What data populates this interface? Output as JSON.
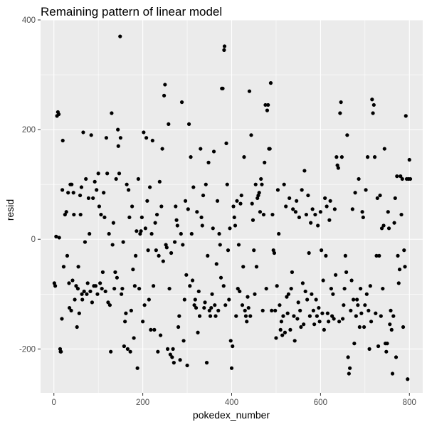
{
  "chart_data": {
    "type": "scatter",
    "title": "Remaining pattern of linear model",
    "xlabel": "pokedex_number",
    "ylabel": "resid",
    "xlim": [
      -30,
      830
    ],
    "ylim": [
      -280,
      400
    ],
    "x_ticks": [
      0,
      200,
      400,
      600,
      800
    ],
    "y_ticks": [
      -200,
      0,
      200,
      400
    ],
    "grid": true,
    "points": [
      [
        1,
        -80
      ],
      [
        3,
        -85
      ],
      [
        5,
        5
      ],
      [
        7,
        225
      ],
      [
        9,
        232
      ],
      [
        11,
        228
      ],
      [
        12,
        3
      ],
      [
        14,
        -200
      ],
      [
        15,
        -205
      ],
      [
        16,
        -205
      ],
      [
        18,
        -145
      ],
      [
        19,
        90
      ],
      [
        20,
        180
      ],
      [
        22,
        -50
      ],
      [
        25,
        45
      ],
      [
        28,
        50
      ],
      [
        30,
        -30
      ],
      [
        32,
        85
      ],
      [
        34,
        -80
      ],
      [
        35,
        -125
      ],
      [
        37,
        100
      ],
      [
        39,
        -130
      ],
      [
        40,
        100
      ],
      [
        42,
        -75
      ],
      [
        44,
        85
      ],
      [
        45,
        45
      ],
      [
        47,
        -110
      ],
      [
        50,
        -85
      ],
      [
        52,
        -160
      ],
      [
        54,
        -90
      ],
      [
        55,
        -50
      ],
      [
        57,
        -135
      ],
      [
        59,
        80
      ],
      [
        60,
        45
      ],
      [
        62,
        95
      ],
      [
        63,
        -100
      ],
      [
        64,
        -110
      ],
      [
        66,
        195
      ],
      [
        68,
        -95
      ],
      [
        70,
        -5
      ],
      [
        72,
        110
      ],
      [
        74,
        -100
      ],
      [
        76,
        -80
      ],
      [
        78,
        75
      ],
      [
        80,
        10
      ],
      [
        82,
        -95
      ],
      [
        84,
        190
      ],
      [
        86,
        -115
      ],
      [
        88,
        75
      ],
      [
        90,
        -85
      ],
      [
        92,
        105
      ],
      [
        94,
        -85
      ],
      [
        96,
        90
      ],
      [
        98,
        -100
      ],
      [
        100,
        120
      ],
      [
        102,
        60
      ],
      [
        104,
        -80
      ],
      [
        106,
        45
      ],
      [
        108,
        -90
      ],
      [
        110,
        -60
      ],
      [
        112,
        85
      ],
      [
        114,
        40
      ],
      [
        116,
        -95
      ],
      [
        118,
        185
      ],
      [
        120,
        120
      ],
      [
        122,
        -115
      ],
      [
        124,
        10
      ],
      [
        126,
        -120
      ],
      [
        128,
        -205
      ],
      [
        130,
        230
      ],
      [
        132,
        -10
      ],
      [
        134,
        30
      ],
      [
        136,
        -90
      ],
      [
        138,
        -60
      ],
      [
        140,
        110
      ],
      [
        142,
        -70
      ],
      [
        144,
        200
      ],
      [
        145,
        170
      ],
      [
        147,
        120
      ],
      [
        149,
        370
      ],
      [
        150,
        185
      ],
      [
        152,
        -100
      ],
      [
        154,
        -90
      ],
      [
        156,
        -5
      ],
      [
        158,
        -195
      ],
      [
        160,
        -150
      ],
      [
        162,
        -135
      ],
      [
        164,
        100
      ],
      [
        166,
        -200
      ],
      [
        168,
        90
      ],
      [
        170,
        40
      ],
      [
        172,
        -205
      ],
      [
        174,
        -130
      ],
      [
        176,
        60
      ],
      [
        178,
        -55
      ],
      [
        180,
        -180
      ],
      [
        182,
        -85
      ],
      [
        184,
        -30
      ],
      [
        186,
        15
      ],
      [
        188,
        -235
      ],
      [
        190,
        110
      ],
      [
        192,
        -90
      ],
      [
        194,
        10
      ],
      [
        196,
        15
      ],
      [
        198,
        40
      ],
      [
        200,
        -150
      ],
      [
        202,
        195
      ],
      [
        204,
        -120
      ],
      [
        206,
        20
      ],
      [
        208,
        185
      ],
      [
        210,
        70
      ],
      [
        212,
        -20
      ],
      [
        214,
        -110
      ],
      [
        216,
        95
      ],
      [
        218,
        -165
      ],
      [
        220,
        10
      ],
      [
        222,
        180
      ],
      [
        224,
        -85
      ],
      [
        226,
        -165
      ],
      [
        228,
        30
      ],
      [
        230,
        -20
      ],
      [
        232,
        45
      ],
      [
        234,
        -205
      ],
      [
        236,
        -30
      ],
      [
        238,
        105
      ],
      [
        240,
        -175
      ],
      [
        242,
        60
      ],
      [
        244,
        165
      ],
      [
        246,
        -40
      ],
      [
        248,
        262
      ],
      [
        250,
        282
      ],
      [
        252,
        -10
      ],
      [
        254,
        -15
      ],
      [
        256,
        -200
      ],
      [
        258,
        210
      ],
      [
        260,
        -90
      ],
      [
        262,
        -210
      ],
      [
        264,
        -25
      ],
      [
        266,
        -215
      ],
      [
        268,
        -200
      ],
      [
        270,
        -225
      ],
      [
        272,
        -5
      ],
      [
        274,
        60
      ],
      [
        276,
        35
      ],
      [
        278,
        25
      ],
      [
        280,
        -160
      ],
      [
        282,
        -140
      ],
      [
        284,
        -220
      ],
      [
        286,
        10
      ],
      [
        288,
        250
      ],
      [
        290,
        -10
      ],
      [
        292,
        -185
      ],
      [
        294,
        -110
      ],
      [
        296,
        70
      ],
      [
        298,
        -65
      ],
      [
        300,
        -230
      ],
      [
        302,
        55
      ],
      [
        304,
        210
      ],
      [
        306,
        -85
      ],
      [
        308,
        150
      ],
      [
        310,
        10
      ],
      [
        312,
        -75
      ],
      [
        314,
        95
      ],
      [
        316,
        -120
      ],
      [
        318,
        -110
      ],
      [
        320,
        -125
      ],
      [
        322,
        50
      ],
      [
        324,
        -170
      ],
      [
        326,
        -95
      ],
      [
        328,
        -140
      ],
      [
        330,
        165
      ],
      [
        332,
        40
      ],
      [
        334,
        25
      ],
      [
        336,
        80
      ],
      [
        338,
        -125
      ],
      [
        340,
        -115
      ],
      [
        342,
        100
      ],
      [
        344,
        -225
      ],
      [
        346,
        -30
      ],
      [
        348,
        140
      ],
      [
        350,
        -130
      ],
      [
        352,
        -140
      ],
      [
        354,
        -125
      ],
      [
        356,
        -100
      ],
      [
        358,
        20
      ],
      [
        360,
        160
      ],
      [
        362,
        -120
      ],
      [
        364,
        -140
      ],
      [
        366,
        -45
      ],
      [
        368,
        70
      ],
      [
        370,
        -130
      ],
      [
        372,
        10
      ],
      [
        374,
        -10
      ],
      [
        376,
        -70
      ],
      [
        378,
        275
      ],
      [
        380,
        275
      ],
      [
        382,
        -85
      ],
      [
        383,
        345
      ],
      [
        384,
        352
      ],
      [
        386,
        -120
      ],
      [
        388,
        175
      ],
      [
        390,
        100
      ],
      [
        392,
        -20
      ],
      [
        394,
        -110
      ],
      [
        396,
        20
      ],
      [
        398,
        -185
      ],
      [
        400,
        -235
      ],
      [
        402,
        -195
      ],
      [
        404,
        60
      ],
      [
        406,
        40
      ],
      [
        408,
        25
      ],
      [
        410,
        -140
      ],
      [
        412,
        70
      ],
      [
        414,
        -90
      ],
      [
        416,
        -10
      ],
      [
        418,
        -95
      ],
      [
        420,
        65
      ],
      [
        422,
        80
      ],
      [
        424,
        -120
      ],
      [
        426,
        -50
      ],
      [
        428,
        150
      ],
      [
        430,
        -130
      ],
      [
        432,
        -140
      ],
      [
        434,
        -150
      ],
      [
        436,
        -105
      ],
      [
        438,
        -125
      ],
      [
        440,
        270
      ],
      [
        442,
        -140
      ],
      [
        444,
        190
      ],
      [
        446,
        65
      ],
      [
        448,
        35
      ],
      [
        450,
        -20
      ],
      [
        452,
        -100
      ],
      [
        454,
        100
      ],
      [
        456,
        -50
      ],
      [
        458,
        75
      ],
      [
        460,
        80
      ],
      [
        462,
        85
      ],
      [
        464,
        50
      ],
      [
        466,
        110
      ],
      [
        468,
        100
      ],
      [
        470,
        -130
      ],
      [
        472,
        45
      ],
      [
        474,
        140
      ],
      [
        476,
        245
      ],
      [
        478,
        -90
      ],
      [
        480,
        235
      ],
      [
        482,
        245
      ],
      [
        484,
        165
      ],
      [
        486,
        165
      ],
      [
        488,
        285
      ],
      [
        490,
        -130
      ],
      [
        492,
        45
      ],
      [
        494,
        -20
      ],
      [
        496,
        -25
      ],
      [
        498,
        -130
      ],
      [
        500,
        -180
      ],
      [
        502,
        -85
      ],
      [
        504,
        90
      ],
      [
        506,
        10
      ],
      [
        508,
        -120
      ],
      [
        510,
        -165
      ],
      [
        512,
        -150
      ],
      [
        514,
        -175
      ],
      [
        516,
        -140
      ],
      [
        518,
        100
      ],
      [
        520,
        -170
      ],
      [
        522,
        60
      ],
      [
        524,
        -105
      ],
      [
        526,
        -135
      ],
      [
        528,
        -100
      ],
      [
        530,
        75
      ],
      [
        532,
        -165
      ],
      [
        534,
        -90
      ],
      [
        536,
        -60
      ],
      [
        538,
        55
      ],
      [
        540,
        -140
      ],
      [
        542,
        -185
      ],
      [
        544,
        50
      ],
      [
        546,
        70
      ],
      [
        548,
        -145
      ],
      [
        550,
        -115
      ],
      [
        552,
        40
      ],
      [
        554,
        -130
      ],
      [
        556,
        -160
      ],
      [
        558,
        90
      ],
      [
        560,
        -80
      ],
      [
        562,
        -155
      ],
      [
        564,
        125
      ],
      [
        566,
        -95
      ],
      [
        568,
        45
      ],
      [
        570,
        -110
      ],
      [
        572,
        80
      ],
      [
        574,
        -25
      ],
      [
        576,
        -140
      ],
      [
        578,
        30
      ],
      [
        580,
        -100
      ],
      [
        582,
        55
      ],
      [
        584,
        -130
      ],
      [
        586,
        -155
      ],
      [
        588,
        45
      ],
      [
        590,
        -110
      ],
      [
        592,
        -140
      ],
      [
        594,
        25
      ],
      [
        596,
        -125
      ],
      [
        598,
        -150
      ],
      [
        600,
        50
      ],
      [
        602,
        -20
      ],
      [
        604,
        -135
      ],
      [
        606,
        -75
      ],
      [
        608,
        -165
      ],
      [
        610,
        75
      ],
      [
        612,
        -30
      ],
      [
        614,
        60
      ],
      [
        616,
        -135
      ],
      [
        618,
        -150
      ],
      [
        620,
        35
      ],
      [
        622,
        70
      ],
      [
        624,
        -90
      ],
      [
        626,
        -140
      ],
      [
        628,
        -100
      ],
      [
        630,
        -145
      ],
      [
        632,
        55
      ],
      [
        634,
        -65
      ],
      [
        636,
        150
      ],
      [
        638,
        135
      ],
      [
        640,
        130
      ],
      [
        642,
        -150
      ],
      [
        644,
        230
      ],
      [
        646,
        250
      ],
      [
        648,
        150
      ],
      [
        650,
        -145
      ],
      [
        652,
        -120
      ],
      [
        654,
        -90
      ],
      [
        656,
        -30
      ],
      [
        658,
        -60
      ],
      [
        660,
        190
      ],
      [
        662,
        -215
      ],
      [
        664,
        -245
      ],
      [
        666,
        -235
      ],
      [
        668,
        -130
      ],
      [
        670,
        -75
      ],
      [
        672,
        55
      ],
      [
        674,
        -110
      ],
      [
        676,
        -190
      ],
      [
        678,
        85
      ],
      [
        680,
        -140
      ],
      [
        682,
        -110
      ],
      [
        684,
        -120
      ],
      [
        686,
        110
      ],
      [
        688,
        -160
      ],
      [
        690,
        -90
      ],
      [
        692,
        -135
      ],
      [
        694,
        50
      ],
      [
        696,
        40
      ],
      [
        698,
        -160
      ],
      [
        700,
        -120
      ],
      [
        702,
        90
      ],
      [
        704,
        -100
      ],
      [
        706,
        150
      ],
      [
        708,
        -130
      ],
      [
        710,
        -200
      ],
      [
        712,
        -85
      ],
      [
        714,
        -150
      ],
      [
        716,
        255
      ],
      [
        718,
        230
      ],
      [
        720,
        245
      ],
      [
        722,
        150
      ],
      [
        724,
        -135
      ],
      [
        726,
        -30
      ],
      [
        728,
        75
      ],
      [
        730,
        -195
      ],
      [
        732,
        -30
      ],
      [
        734,
        80
      ],
      [
        736,
        -140
      ],
      [
        738,
        20
      ],
      [
        740,
        -90
      ],
      [
        742,
        25
      ],
      [
        744,
        165
      ],
      [
        746,
        -190
      ],
      [
        748,
        -205
      ],
      [
        750,
        -190
      ],
      [
        752,
        50
      ],
      [
        754,
        20
      ],
      [
        756,
        -155
      ],
      [
        758,
        -130
      ],
      [
        760,
        -165
      ],
      [
        762,
        -245
      ],
      [
        764,
        -140
      ],
      [
        766,
        30
      ],
      [
        768,
        75
      ],
      [
        770,
        -215
      ],
      [
        772,
        115
      ],
      [
        774,
        -30
      ],
      [
        776,
        -80
      ],
      [
        778,
        -55
      ],
      [
        780,
        115
      ],
      [
        782,
        45
      ],
      [
        784,
        110
      ],
      [
        786,
        -160
      ],
      [
        788,
        -20
      ],
      [
        790,
        -50
      ],
      [
        792,
        225
      ],
      [
        794,
        110
      ],
      [
        796,
        -255
      ],
      [
        798,
        110
      ],
      [
        800,
        145
      ],
      [
        802,
        110
      ]
    ]
  }
}
